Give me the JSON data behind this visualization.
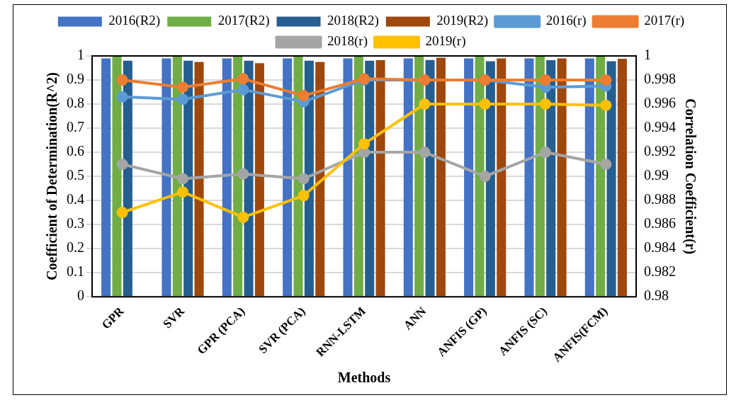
{
  "chart_data": {
    "type": "bar",
    "xlabel": "Methods",
    "ylabel": "Coefficient of Determination(R^2)",
    "y2label": "Correlation Coefficient(r)",
    "categories": [
      "GPR",
      "SVR",
      "GPR (PCA)",
      "SVR (PCA)",
      "RNN-LSTM",
      "ANN",
      "ANFIS (GP)",
      "ANFIS (SC)",
      "ANFIS(FCM)"
    ],
    "series": [
      {
        "name": "2016(R2)",
        "color": "#4472c4",
        "values": [
          0.99,
          0.99,
          0.99,
          0.99,
          0.99,
          0.99,
          0.99,
          0.99,
          0.99
        ]
      },
      {
        "name": "2017(R2)",
        "color": "#70ad47",
        "values": [
          1,
          1,
          1,
          1,
          1,
          1,
          1,
          1,
          1
        ]
      },
      {
        "name": "2018(R2)",
        "color": "#255e91",
        "values": [
          0.98,
          0.98,
          0.98,
          0.98,
          0.98,
          0.983,
          0.978,
          0.982,
          0.978
        ]
      },
      {
        "name": "2019(R2)",
        "color": "#9e480e",
        "values": [
          null,
          0.975,
          0.97,
          0.975,
          0.982,
          0.993,
          0.99,
          0.99,
          0.988
        ]
      },
      {
        "name": "2016(r)",
        "type": "line",
        "axis": "y2",
        "color": "#5b9bd5",
        "values": [
          0.9966,
          0.9964,
          0.9972,
          0.9962,
          0.998,
          0.998,
          0.998,
          0.9974,
          0.9975
        ]
      },
      {
        "name": "2017(r)",
        "type": "line",
        "axis": "y2",
        "color": "#ed7d31",
        "values": [
          0.998,
          0.9974,
          0.9981,
          0.9967,
          0.9981,
          0.998,
          0.998,
          0.998,
          0.998
        ]
      },
      {
        "name": "2018(r)",
        "type": "line",
        "axis": "y2",
        "color": "#a5a5a5",
        "values": [
          0.991,
          0.9898,
          0.9902,
          0.9898,
          0.992,
          0.992,
          0.99,
          0.992,
          0.991
        ]
      },
      {
        "name": "2019(r)",
        "type": "line",
        "axis": "y2",
        "color": "#ffc000",
        "values": [
          0.987,
          0.9887,
          0.9866,
          0.9884,
          0.9927,
          0.996,
          0.996,
          0.996,
          0.9959
        ]
      }
    ],
    "ylim": [
      0,
      1
    ],
    "yticks": [
      0,
      0.1,
      0.2,
      0.3,
      0.4,
      0.5,
      0.6,
      0.7,
      0.8,
      0.9,
      1
    ],
    "y2lim": [
      0.98,
      1
    ],
    "y2ticks": [
      0.98,
      0.982,
      0.984,
      0.986,
      0.988,
      0.99,
      0.992,
      0.994,
      0.996,
      0.998,
      1
    ],
    "grid": "y",
    "legend": "top",
    "marker": "circle"
  }
}
